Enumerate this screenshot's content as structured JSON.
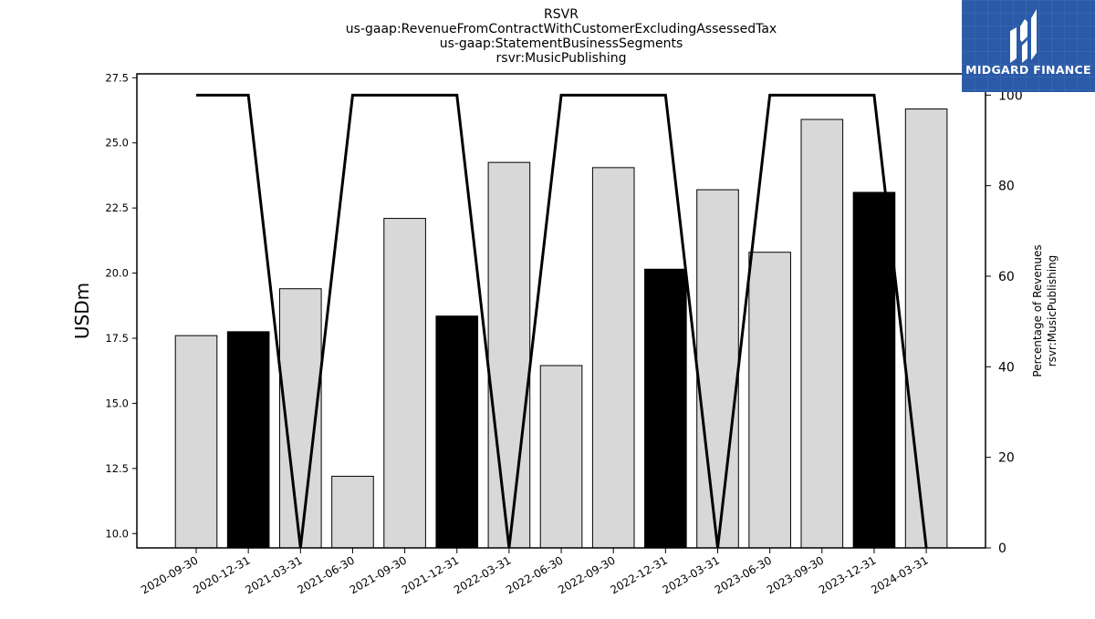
{
  "chart_data": {
    "type": "bar",
    "title_lines": [
      "RSVR",
      "us-gaap:RevenueFromContractWithCustomerExcludingAssessedTax",
      "us-gaap:StatementBusinessSegments",
      "rsvr:MusicPublishing"
    ],
    "categories": [
      "2020-09-30",
      "2020-12-31",
      "2021-03-31",
      "2021-06-30",
      "2021-09-30",
      "2021-12-31",
      "2022-03-31",
      "2022-06-30",
      "2022-09-30",
      "2022-12-31",
      "2023-03-31",
      "2023-06-30",
      "2023-09-30",
      "2023-12-31",
      "2024-03-31"
    ],
    "values": [
      17.6,
      17.75,
      19.4,
      12.2,
      22.1,
      18.35,
      24.25,
      16.45,
      24.05,
      20.15,
      23.2,
      20.8,
      25.9,
      23.1,
      26.3
    ],
    "highlighted": [
      false,
      true,
      false,
      false,
      false,
      true,
      false,
      false,
      false,
      true,
      false,
      false,
      false,
      true,
      false
    ],
    "line_values": [
      100,
      100,
      0,
      100,
      100,
      100,
      0,
      100,
      100,
      100,
      0,
      100,
      100,
      100,
      0
    ],
    "ylabel": "USDm",
    "ylim": [
      9.45,
      27.65
    ],
    "yticks": [
      "10.0",
      "12.5",
      "15.0",
      "17.5",
      "20.0",
      "22.5",
      "25.0",
      "27.5"
    ],
    "y2label_lines": [
      "Percentage of Revenues",
      "rsvr:MusicPublishing"
    ],
    "y2lim": [
      0,
      104.7
    ],
    "y2ticks": [
      "0",
      "20",
      "40",
      "60",
      "80",
      "100"
    ],
    "colors": {
      "bar": "#d8d8d8",
      "bar_highlight": "#000000",
      "line": "#000000",
      "logo_bg": "#2a5aa8"
    }
  },
  "logo": {
    "text": "MIDGARD FINANCE"
  }
}
